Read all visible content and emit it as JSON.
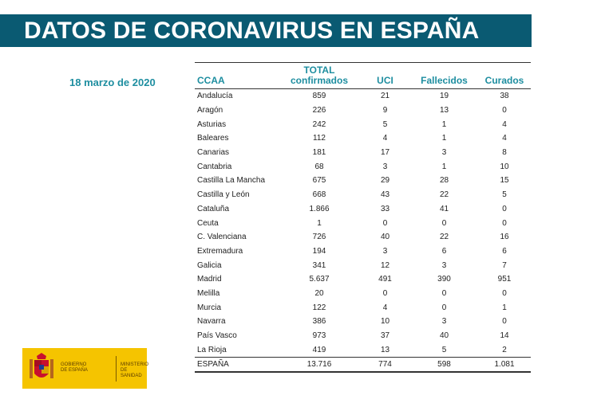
{
  "header": {
    "title": "DATOS DE CORONAVIRUS EN ESPAÑA"
  },
  "date": "18 marzo de 2020",
  "table": {
    "columns": [
      "CCAA",
      "TOTAL\nconfirmados",
      "UCI",
      "Fallecidos",
      "Curados"
    ],
    "rows": [
      [
        "Andalucía",
        "859",
        "21",
        "19",
        "38"
      ],
      [
        "Aragón",
        "226",
        "9",
        "13",
        "0"
      ],
      [
        "Asturias",
        "242",
        "5",
        "1",
        "4"
      ],
      [
        "Baleares",
        "112",
        "4",
        "1",
        "4"
      ],
      [
        "Canarias",
        "181",
        "17",
        "3",
        "8"
      ],
      [
        "Cantabria",
        "68",
        "3",
        "1",
        "10"
      ],
      [
        "Castilla La Mancha",
        "675",
        "29",
        "28",
        "15"
      ],
      [
        "Castilla y León",
        "668",
        "43",
        "22",
        "5"
      ],
      [
        "Cataluña",
        "1.866",
        "33",
        "41",
        "0"
      ],
      [
        "Ceuta",
        "1",
        "0",
        "0",
        "0"
      ],
      [
        "C. Valenciana",
        "726",
        "40",
        "22",
        "16"
      ],
      [
        "Extremadura",
        "194",
        "3",
        "6",
        "6"
      ],
      [
        "Galicia",
        "341",
        "12",
        "3",
        "7"
      ],
      [
        "Madrid",
        "5.637",
        "491",
        "390",
        "951"
      ],
      [
        "Melilla",
        "20",
        "0",
        "0",
        "0"
      ],
      [
        "Murcia",
        "122",
        "4",
        "0",
        "1"
      ],
      [
        "Navarra",
        "386",
        "10",
        "3",
        "0"
      ],
      [
        "País Vasco",
        "973",
        "37",
        "40",
        "14"
      ],
      [
        "La Rioja",
        "419",
        "13",
        "5",
        "2"
      ]
    ],
    "total": [
      "ESPAÑA",
      "13.716",
      "774",
      "598",
      "1.081"
    ]
  },
  "logo": {
    "left_text": "GOBIERNO\nDE ESPAÑA",
    "right_text": "MINISTERIO\nDE SANIDAD",
    "icon": "coat-of-arms-icon",
    "color": "#f5c400"
  }
}
